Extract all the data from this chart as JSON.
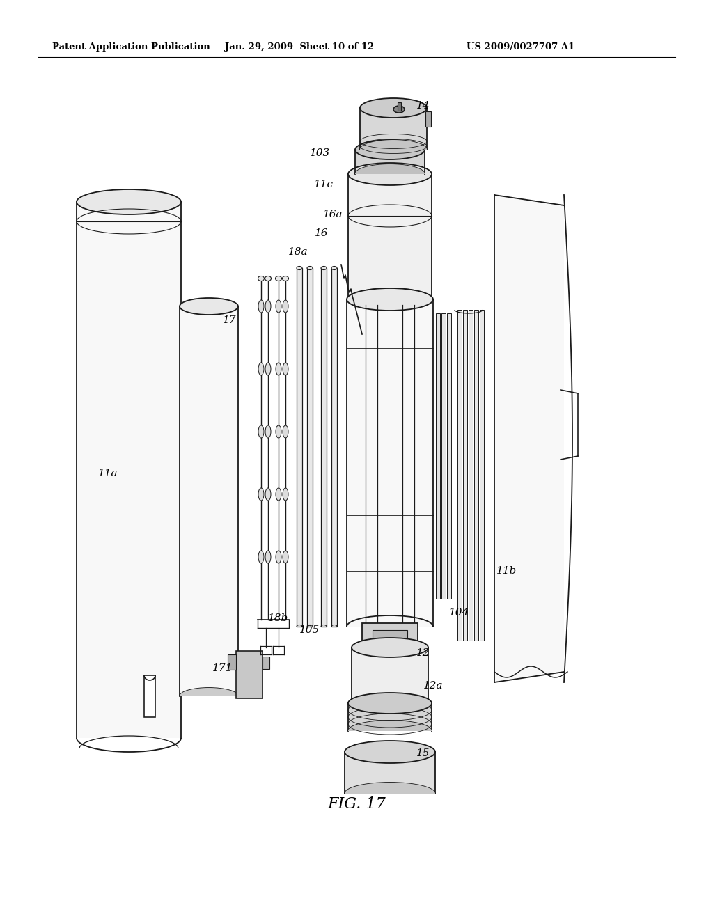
{
  "background_color": "#ffffff",
  "header_left": "Patent Application Publication",
  "header_mid": "Jan. 29, 2009  Sheet 10 of 12",
  "header_right": "US 2009/0027707 A1",
  "figure_label": "FIG. 17",
  "line_color": "#1a1a1a",
  "fill_light": "#f8f8f8",
  "fill_mid": "#e8e8e8",
  "fill_dark": "#cccccc"
}
